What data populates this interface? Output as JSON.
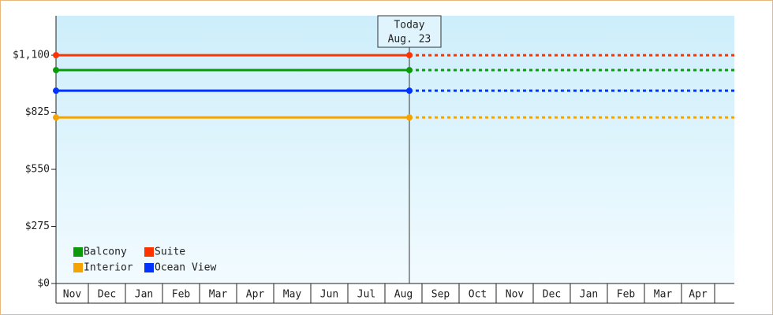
{
  "chart_data": {
    "type": "line",
    "annotation": {
      "title": "Today",
      "date": "Aug. 23"
    },
    "categories": [
      "Nov",
      "Dec",
      "Jan",
      "Feb",
      "Mar",
      "Apr",
      "May",
      "Jun",
      "Jul",
      "Aug",
      "Sep",
      "Oct",
      "Nov",
      "Dec",
      "Jan",
      "Feb",
      "Mar",
      "Apr"
    ],
    "series": [
      {
        "name": "Balcony",
        "color": "#0a9a0a",
        "value": 1028
      },
      {
        "name": "Suite",
        "color": "#ff3300",
        "value": 1100
      },
      {
        "name": "Interior",
        "color": "#f5a300",
        "value": 800
      },
      {
        "name": "Ocean View",
        "color": "#0033ff",
        "value": 929
      }
    ],
    "ylim": [
      0,
      1290
    ],
    "yticks": [
      {
        "value": 0,
        "label": "$0"
      },
      {
        "value": 275,
        "label": "$275"
      },
      {
        "value": 550,
        "label": "$550"
      },
      {
        "value": 825,
        "label": "$825"
      },
      {
        "value": 1100,
        "label": "$1,100"
      }
    ]
  }
}
